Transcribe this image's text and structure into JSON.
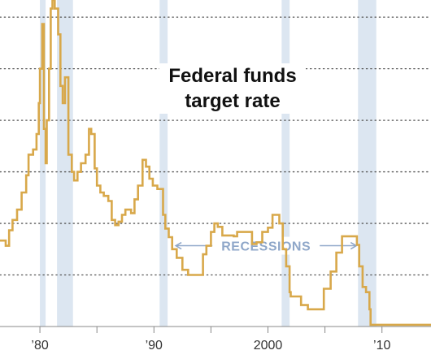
{
  "chart_data": {
    "type": "line",
    "title_lines": [
      "Federal funds",
      "target rate"
    ],
    "xlabel": "",
    "ylabel": "",
    "xlim": [
      1976.5,
      2014.3
    ],
    "ylim": [
      0,
      19
    ],
    "grid": {
      "horizontal": true,
      "style": "dotted",
      "y_values": [
        3,
        6,
        9,
        12,
        15,
        18
      ]
    },
    "x_ticks": [
      {
        "value": 1980,
        "label": "’80"
      },
      {
        "value": 1985,
        "label": ""
      },
      {
        "value": 1990,
        "label": "’90"
      },
      {
        "value": 1995,
        "label": ""
      },
      {
        "value": 2000,
        "label": "2000"
      },
      {
        "value": 2005,
        "label": ""
      },
      {
        "value": 2010,
        "label": "’10"
      }
    ],
    "recessions": [
      {
        "start": 1980.0,
        "end": 1980.5
      },
      {
        "start": 1981.5,
        "end": 1982.9
      },
      {
        "start": 1990.5,
        "end": 1991.2
      },
      {
        "start": 2001.2,
        "end": 2001.9
      },
      {
        "start": 2007.9,
        "end": 2009.5
      }
    ],
    "annotation": {
      "label": "RECESSIONS",
      "from_x": 1991.2,
      "to_x": 2007.9,
      "y": 4.7
    },
    "line_color": "#d8a84a",
    "recession_color": "#dce6f1",
    "annotation_color": "#8fa7c9",
    "series": [
      {
        "x": [
          1976.5,
          1977.0,
          1977.3,
          1977.6,
          1978.0,
          1978.4,
          1978.8,
          1979.0,
          1979.4,
          1979.7,
          1979.9,
          1980.0,
          1980.2,
          1980.35,
          1980.5,
          1980.6,
          1980.8,
          1980.95,
          1981.1,
          1981.3,
          1981.6,
          1981.8,
          1982.0,
          1982.2,
          1982.5,
          1982.8,
          1983.0,
          1983.3,
          1983.6,
          1984.0,
          1984.3,
          1984.5,
          1984.8,
          1985.0,
          1985.3,
          1985.6,
          1986.0,
          1986.3,
          1986.6,
          1986.9,
          1987.2,
          1987.5,
          1987.8,
          1988.0,
          1988.3,
          1988.6,
          1989.0,
          1989.3,
          1989.6,
          1989.9,
          1990.3,
          1990.8,
          1991.0,
          1991.3,
          1991.6,
          1992.0,
          1992.5,
          1993.0,
          1994.0,
          1994.3,
          1994.6,
          1995.0,
          1995.3,
          1995.6,
          1996.0,
          1997.0,
          1997.3,
          1998.0,
          1998.6,
          1999.0,
          1999.5,
          2000.0,
          2000.4,
          2001.0,
          2001.3,
          2001.6,
          2001.9,
          2002.0,
          2002.9,
          2003.5,
          2004.5,
          2004.9,
          2005.5,
          2006.0,
          2006.5,
          2007.6,
          2007.8,
          2008.0,
          2008.3,
          2008.6,
          2008.9,
          2009.0,
          2014.3
        ],
        "y": [
          5.0,
          4.7,
          5.6,
          6.2,
          6.8,
          7.8,
          8.8,
          10.0,
          10.3,
          11.2,
          13.0,
          15.0,
          17.6,
          11.5,
          9.5,
          12.0,
          15.0,
          18.5,
          19.0,
          18.5,
          17.0,
          14.0,
          13.0,
          14.5,
          10.0,
          9.0,
          8.5,
          9.0,
          9.5,
          10.0,
          11.5,
          11.2,
          9.2,
          8.2,
          7.8,
          7.6,
          7.3,
          6.2,
          5.9,
          6.1,
          6.5,
          6.8,
          6.8,
          6.6,
          7.4,
          8.2,
          9.7,
          9.3,
          8.6,
          8.2,
          8.0,
          6.5,
          5.7,
          5.2,
          4.5,
          4.0,
          3.3,
          3.0,
          3.0,
          4.2,
          4.7,
          5.5,
          6.0,
          5.8,
          5.3,
          5.25,
          5.5,
          5.5,
          4.8,
          4.9,
          5.5,
          5.75,
          6.5,
          6.0,
          4.5,
          3.5,
          2.0,
          1.75,
          1.25,
          1.0,
          1.0,
          2.2,
          3.2,
          4.3,
          5.25,
          5.25,
          4.75,
          3.5,
          2.3,
          2.0,
          1.0,
          0.1,
          0.1
        ]
      }
    ]
  }
}
